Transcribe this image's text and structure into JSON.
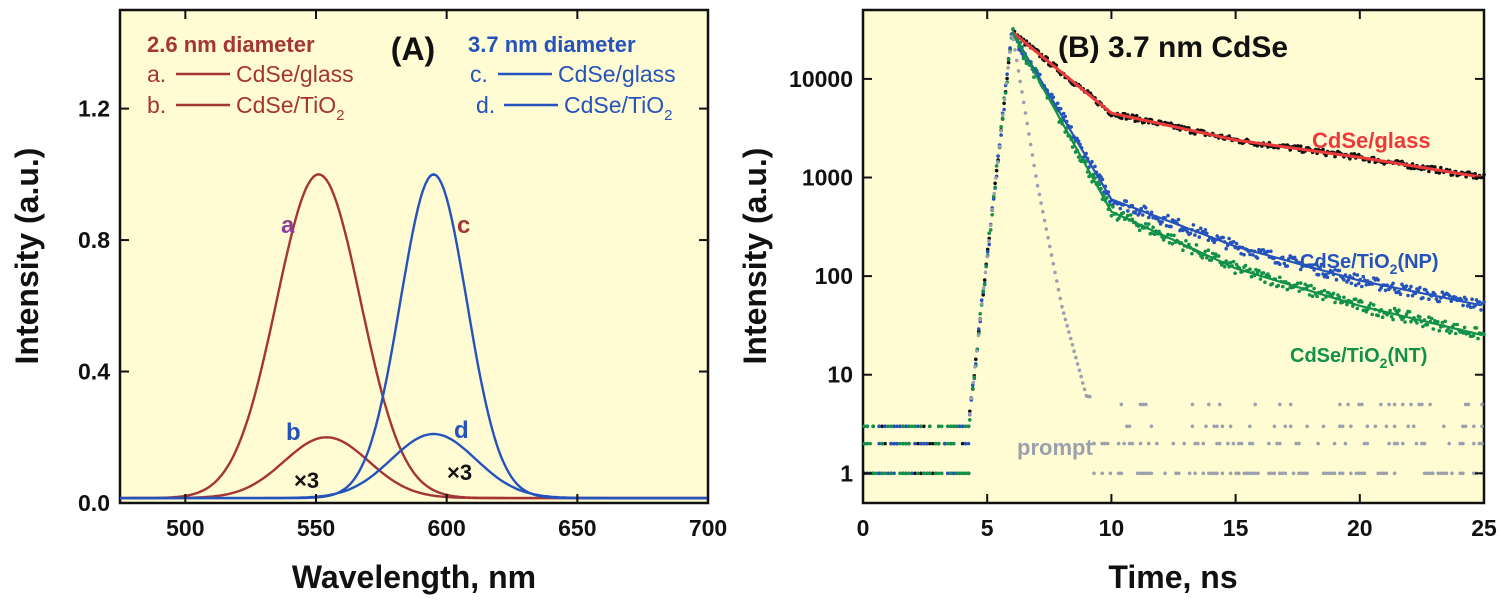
{
  "colors": {
    "background": "#ffffff",
    "plot_bg": "#fffbd2",
    "red": "#a53534",
    "blue": "#2553bd",
    "green": "#11914a",
    "fit_red": "#ec3a3a",
    "gray": "#9aa0ae",
    "purple": "#8e3e99",
    "black": "#111111"
  },
  "chart_data": [
    {
      "id": "A",
      "type": "line",
      "title": "(A)",
      "xlabel": "Wavelength, nm",
      "ylabel": "Intensity (a.u.)",
      "xlim": [
        475,
        700
      ],
      "ylim": [
        0,
        1.5
      ],
      "xticks": [
        "500",
        "550",
        "600",
        "650",
        "700"
      ],
      "yticks": [
        "0.0",
        "0.4",
        "0.8",
        "1.2"
      ],
      "grid": false,
      "legend": {
        "group1_title": "2.6 nm diameter",
        "group2_title": "3.7 nm diameter",
        "items": [
          {
            "letter": "a.",
            "label": "CdSe/glass"
          },
          {
            "letter": "b.",
            "label": "CdSe/TiO",
            "sub": "2"
          },
          {
            "letter": "c.",
            "label": "CdSe/glass"
          },
          {
            "letter": "d.",
            "label": "CdSe/TiO",
            "sub": "2"
          }
        ]
      },
      "annotations": [
        {
          "text": "a"
        },
        {
          "text": "b"
        },
        {
          "text": "c"
        },
        {
          "text": "d"
        },
        {
          "text": "×3"
        },
        {
          "text": "×3"
        }
      ],
      "series": [
        {
          "name": "a. CdSe/glass",
          "peak_x": 551,
          "peak_y": 1.0,
          "fwhm": 38
        },
        {
          "name": "b. CdSe/TiO2",
          "peak_x": 554,
          "peak_y": 0.2,
          "fwhm": 38
        },
        {
          "name": "c. CdSe/glass",
          "peak_x": 595,
          "peak_y": 1.0,
          "fwhm": 30
        },
        {
          "name": "d. CdSe/TiO2",
          "peak_x": 595,
          "peak_y": 0.21,
          "fwhm": 38
        }
      ]
    },
    {
      "id": "B",
      "type": "scatter",
      "title": "(B) 3.7 nm CdSe",
      "xlabel": "Time, ns",
      "ylabel": "Intensity (a.u.)",
      "xlim": [
        0,
        25
      ],
      "ylim": [
        0.5,
        50000
      ],
      "yscale": "log",
      "xticks": [
        "0",
        "5",
        "10",
        "15",
        "20",
        "25"
      ],
      "yticks": [
        "1",
        "10",
        "100",
        "1000",
        "10000"
      ],
      "grid": false,
      "labels": {
        "glass": "CdSe/glass",
        "np": "CdSe/TiO",
        "np_sub": "2",
        "np_tail": "(NP)",
        "nt": "CdSe/TiO",
        "nt_sub": "2",
        "nt_tail": "(NT)",
        "prompt": "prompt"
      },
      "series": [
        {
          "name": "CdSe/glass",
          "peak_time": 6.0,
          "peak": 30000,
          "values_at": {
            "10": 4500,
            "15": 2400,
            "20": 1600,
            "25": 1000
          }
        },
        {
          "name": "CdSe/TiO2(NP)",
          "peak_time": 6.0,
          "peak": 30000,
          "values_at": {
            "10": 600,
            "15": 200,
            "20": 90,
            "25": 50
          }
        },
        {
          "name": "CdSe/TiO2(NT)",
          "peak_time": 6.0,
          "peak": 30000,
          "values_at": {
            "10": 450,
            "15": 120,
            "20": 50,
            "25": 25
          }
        },
        {
          "name": "prompt",
          "peak_time": 6.0,
          "peak": 30000,
          "values_at": {
            "7": 900,
            "8": 50,
            "9": 6
          },
          "baseline": [
            1,
            2,
            3,
            5
          ]
        }
      ]
    }
  ]
}
